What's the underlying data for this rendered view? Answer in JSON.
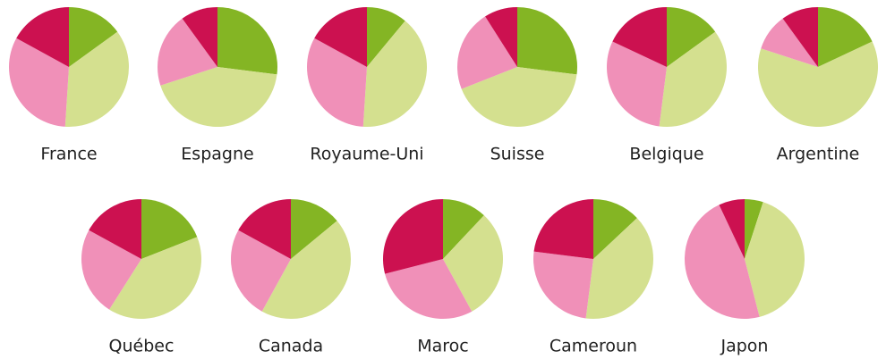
{
  "chart_data": [
    {
      "type": "pie",
      "title": "France",
      "values": [
        15,
        36,
        32,
        17
      ],
      "colors": [
        "#84b524",
        "#d4e08f",
        "#f090b8",
        "#cc1150"
      ]
    },
    {
      "type": "pie",
      "title": "Espagne",
      "values": [
        27,
        43,
        20,
        10
      ],
      "colors": [
        "#84b524",
        "#d4e08f",
        "#f090b8",
        "#cc1150"
      ]
    },
    {
      "type": "pie",
      "title": "Royaume-Uni",
      "values": [
        11,
        40,
        32,
        17
      ],
      "colors": [
        "#84b524",
        "#d4e08f",
        "#f090b8",
        "#cc1150"
      ]
    },
    {
      "type": "pie",
      "title": "Suisse",
      "values": [
        27,
        42,
        22,
        9
      ],
      "colors": [
        "#84b524",
        "#d4e08f",
        "#f090b8",
        "#cc1150"
      ]
    },
    {
      "type": "pie",
      "title": "Belgique",
      "values": [
        15,
        37,
        30,
        18
      ],
      "colors": [
        "#84b524",
        "#d4e08f",
        "#f090b8",
        "#cc1150"
      ]
    },
    {
      "type": "pie",
      "title": "Argentine",
      "values": [
        18,
        62,
        10,
        10
      ],
      "colors": [
        "#84b524",
        "#d4e08f",
        "#f090b8",
        "#cc1150"
      ]
    },
    {
      "type": "pie",
      "title": "Québec",
      "values": [
        19,
        40,
        24,
        17
      ],
      "colors": [
        "#84b524",
        "#d4e08f",
        "#f090b8",
        "#cc1150"
      ]
    },
    {
      "type": "pie",
      "title": "Canada",
      "values": [
        14,
        44,
        25,
        17
      ],
      "colors": [
        "#84b524",
        "#d4e08f",
        "#f090b8",
        "#cc1150"
      ]
    },
    {
      "type": "pie",
      "title": "Maroc",
      "values": [
        12,
        30,
        29,
        29
      ],
      "colors": [
        "#84b524",
        "#d4e08f",
        "#f090b8",
        "#cc1150"
      ]
    },
    {
      "type": "pie",
      "title": "Cameroun",
      "values": [
        13,
        39,
        25,
        23
      ],
      "colors": [
        "#84b524",
        "#d4e08f",
        "#f090b8",
        "#cc1150"
      ]
    },
    {
      "type": "pie",
      "title": "Japon",
      "values": [
        5,
        41,
        47,
        7
      ],
      "colors": [
        "#84b524",
        "#d4e08f",
        "#f090b8",
        "#cc1150"
      ]
    }
  ]
}
